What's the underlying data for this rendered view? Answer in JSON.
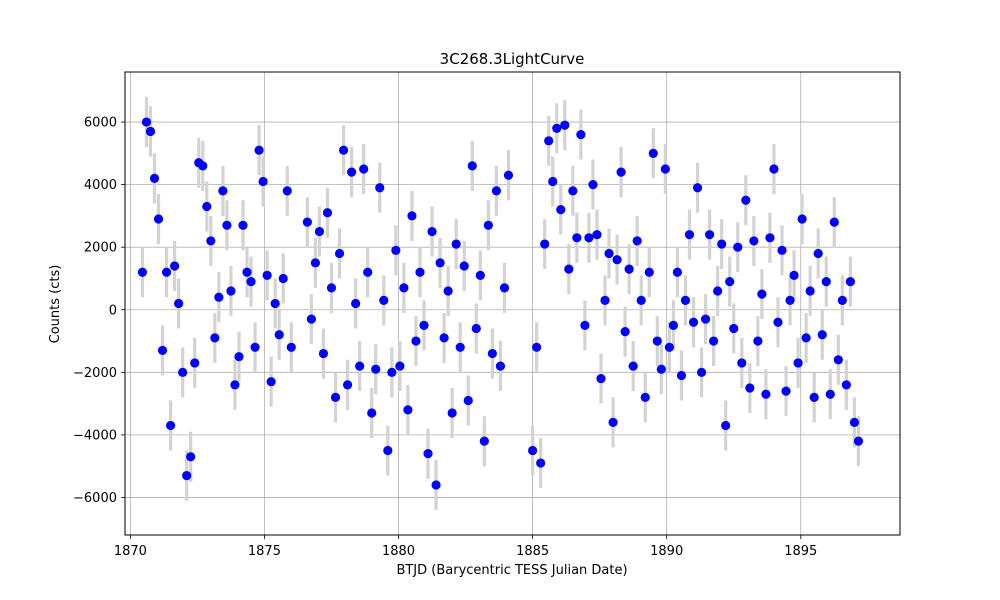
{
  "chart_data": {
    "type": "scatter",
    "title": "3C268.3LightCurve",
    "xlabel": "BTJD (Barycentric TESS Julian Date)",
    "ylabel": "Counts (cts)",
    "xlim": [
      1869.8,
      1898.7
    ],
    "ylim": [
      -7200,
      7600
    ],
    "xticks": [
      1870,
      1875,
      1880,
      1885,
      1890,
      1895
    ],
    "yticks": [
      -6000,
      -4000,
      -2000,
      0,
      2000,
      4000,
      6000
    ],
    "xtick_labels": [
      "1870",
      "1875",
      "1880",
      "1885",
      "1890",
      "1895"
    ],
    "ytick_labels": [
      "−6000",
      "−4000",
      "−2000",
      "0",
      "2000",
      "4000",
      "6000"
    ],
    "grid": true,
    "marker_color": "#0000ff",
    "errorbar_color": "#d3d3d3",
    "error_y": 800,
    "segments": [
      {
        "x": [
          1870.45,
          1870.6,
          1870.75,
          1870.9,
          1871.05,
          1871.2,
          1871.35,
          1871.5,
          1871.65,
          1871.8,
          1871.95,
          1872.1,
          1872.25,
          1872.4,
          1872.55,
          1872.7,
          1872.85,
          1873.0,
          1873.15,
          1873.3,
          1873.45,
          1873.6,
          1873.75,
          1873.9,
          1874.05,
          1874.2,
          1874.35,
          1874.5,
          1874.65,
          1874.8,
          1874.95,
          1875.1,
          1875.25,
          1875.4,
          1875.55,
          1875.7,
          1875.85,
          1876.0
        ],
        "y": [
          1200,
          6000,
          5700,
          4200,
          2900,
          -1300,
          1200,
          -3700,
          1400,
          200,
          -2000,
          -5300,
          -4700,
          -1700,
          4700,
          4600,
          3300,
          2200,
          -900,
          400,
          3800,
          2700,
          600,
          -2400,
          -1500,
          2700,
          1200,
          900,
          -1200,
          5100,
          4100,
          1100,
          -2300,
          200,
          -800,
          1000,
          3800,
          -1200
        ]
      },
      {
        "x": [
          1876.6,
          1876.75,
          1876.9,
          1877.05,
          1877.2,
          1877.35,
          1877.5,
          1877.65,
          1877.8,
          1877.95,
          1878.1,
          1878.25,
          1878.4,
          1878.55,
          1878.7,
          1878.85,
          1879.0,
          1879.15,
          1879.3,
          1879.45,
          1879.6,
          1879.75,
          1879.9,
          1880.05,
          1880.2,
          1880.35,
          1880.5,
          1880.65,
          1880.8,
          1880.95,
          1881.1,
          1881.25,
          1881.4,
          1881.55,
          1881.7,
          1881.85,
          1882.0,
          1882.15,
          1882.3,
          1882.45,
          1882.6,
          1882.75,
          1882.9,
          1883.05,
          1883.2,
          1883.35,
          1883.5,
          1883.65,
          1883.8,
          1883.95,
          1884.1
        ],
        "y": [
          2800,
          -300,
          1500,
          2500,
          -1400,
          3100,
          700,
          -2800,
          1800,
          5100,
          -2400,
          4400,
          200,
          -1800,
          4500,
          1200,
          -3300,
          -1900,
          3900,
          300,
          -4500,
          -2000,
          1900,
          -1800,
          700,
          -3200,
          3000,
          -1000,
          1200,
          -500,
          -4600,
          2500,
          -5600,
          1500,
          -900,
          600,
          -3300,
          2100,
          -1200,
          1400,
          -2900,
          4600,
          -600,
          1100,
          -4200,
          2700,
          -1400,
          3800,
          -1800,
          700,
          4300
        ]
      },
      {
        "x": [
          1885.0,
          1885.15,
          1885.3,
          1885.45,
          1885.6,
          1885.75,
          1885.9,
          1886.05,
          1886.2,
          1886.35,
          1886.5,
          1886.65,
          1886.8,
          1886.95,
          1887.1,
          1887.25,
          1887.4,
          1887.55,
          1887.7,
          1887.85,
          1888.0,
          1888.15,
          1888.3,
          1888.45,
          1888.6,
          1888.75,
          1888.9,
          1889.05,
          1889.2,
          1889.35,
          1889.5,
          1889.65,
          1889.8,
          1889.95,
          1890.1,
          1890.25,
          1890.4,
          1890.55,
          1890.7,
          1890.85,
          1891.0,
          1891.15,
          1891.3,
          1891.45,
          1891.6,
          1891.75,
          1891.9,
          1892.05,
          1892.2,
          1892.35,
          1892.5,
          1892.65,
          1892.8,
          1892.95,
          1893.1,
          1893.25,
          1893.4,
          1893.55,
          1893.7,
          1893.85,
          1894.0,
          1894.15,
          1894.3,
          1894.45,
          1894.6,
          1894.75,
          1894.9,
          1895.05,
          1895.2,
          1895.35,
          1895.5,
          1895.65,
          1895.8,
          1895.95,
          1896.1,
          1896.25,
          1896.4,
          1896.55,
          1896.7,
          1896.85,
          1897.0,
          1897.15
        ],
        "y": [
          -4500,
          -1200,
          -4900,
          2100,
          5400,
          4100,
          5800,
          3200,
          5900,
          1300,
          3800,
          2300,
          5600,
          -500,
          2300,
          4000,
          2400,
          -2200,
          300,
          1800,
          -3600,
          1600,
          4400,
          -700,
          1300,
          -1800,
          2200,
          300,
          -2800,
          1200,
          5000,
          -1000,
          -1900,
          4500,
          -1200,
          -500,
          1200,
          -2100,
          300,
          2400,
          -400,
          3900,
          -2000,
          -300,
          2400,
          -1000,
          600,
          2100,
          -3700,
          900,
          -600,
          2000,
          -1700,
          3500,
          -2500,
          2200,
          -1000,
          500,
          -2700,
          2300,
          4500,
          -400,
          1900,
          -2600,
          300,
          1100,
          -1700,
          2900,
          -900,
          600,
          -2800,
          1800,
          -800,
          900,
          -2700,
          2800,
          -1600,
          300,
          -2400,
          900,
          -3600,
          -4200
        ]
      }
    ]
  }
}
